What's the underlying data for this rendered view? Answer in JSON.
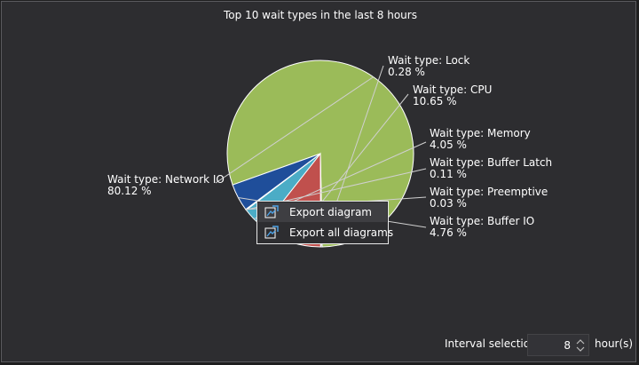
{
  "title": "Top 10 wait types in the last 8 hours",
  "chart_data": {
    "type": "pie",
    "title": "Top 10 wait types in the last 8 hours",
    "slices": [
      {
        "label": "Wait type:  Network IO",
        "value": 80.12,
        "percent": "80.12 %",
        "color": "#9bbb59"
      },
      {
        "label": "Wait type:  Lock",
        "value": 0.28,
        "percent": "0.28 %",
        "color": "#f2f2f2"
      },
      {
        "label": "Wait type:  CPU",
        "value": 10.65,
        "percent": "10.65 %",
        "color": "#c0504d"
      },
      {
        "label": "Wait type:  Memory",
        "value": 4.05,
        "percent": "4.05 %",
        "color": "#4bacc6"
      },
      {
        "label": "Wait type:  Buffer Latch",
        "value": 0.11,
        "percent": "0.11 %",
        "color": "#f2f2f2"
      },
      {
        "label": "Wait type:  Preemptive",
        "value": 0.03,
        "percent": "0.03 %",
        "color": "#f2f2f2"
      },
      {
        "label": "Wait type:  Buffer IO",
        "value": 4.76,
        "percent": "4.76 %",
        "color": "#1f4e9a"
      }
    ]
  },
  "context_menu": {
    "items": [
      {
        "label": "Export diagram",
        "icon": "export-icon"
      },
      {
        "label": "Export all diagrams",
        "icon": "export-all-icon"
      }
    ]
  },
  "footer": {
    "interval_label": "Interval selection",
    "interval_value": "8",
    "unit": "hour(s)"
  }
}
